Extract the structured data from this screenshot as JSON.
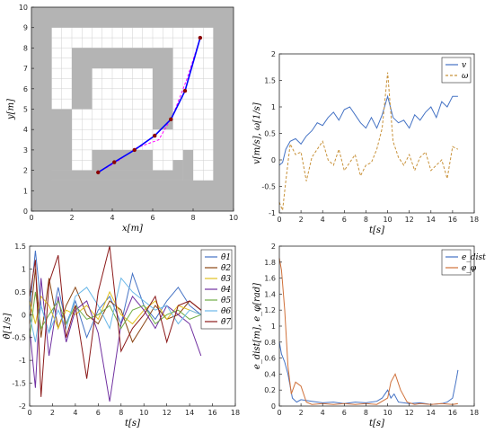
{
  "chart_data": [
    {
      "type": "map",
      "xlabel": "x[m]",
      "ylabel": "y[m]",
      "xlim": [
        0,
        10
      ],
      "ylim": [
        0,
        10
      ],
      "xticks": [
        "0",
        "2",
        "4",
        "6",
        "8",
        "10"
      ],
      "yticks": [
        "0",
        "1",
        "2",
        "3",
        "4",
        "5",
        "6",
        "7",
        "8",
        "9",
        "10"
      ],
      "grid": true,
      "colors": {
        "obstacle": "#b4b4b4",
        "free": "#ffffff",
        "grid": "#cfcfcf",
        "path": "#0000ff",
        "ref": "#ff00ff",
        "marker": "#8b0000"
      },
      "obstacles": [
        {
          "x": [
            0,
            10
          ],
          "y": [
            0,
            1.5
          ]
        },
        {
          "x": [
            0,
            1
          ],
          "y": [
            0,
            10
          ]
        },
        {
          "x": [
            9,
            10
          ],
          "y": [
            0,
            10
          ]
        },
        {
          "x": [
            0,
            10
          ],
          "y": [
            9,
            10
          ]
        },
        {
          "x": [
            1,
            2
          ],
          "y": [
            2,
            5
          ]
        },
        {
          "x": [
            1,
            7
          ],
          "y": [
            1.5,
            2
          ]
        },
        {
          "x": [
            2,
            7
          ],
          "y": [
            7,
            8
          ]
        },
        {
          "x": [
            2,
            3
          ],
          "y": [
            5,
            8
          ]
        },
        {
          "x": [
            6,
            7
          ],
          "y": [
            4,
            8
          ]
        },
        {
          "x": [
            3,
            6
          ],
          "y": [
            2,
            3
          ]
        },
        {
          "x": [
            7,
            7.5
          ],
          "y": [
            1.5,
            2.5
          ]
        },
        {
          "x": [
            7.5,
            8
          ],
          "y": [
            1.5,
            3
          ]
        }
      ],
      "robot_path": {
        "x": [
          3.3,
          4.1,
          5.1,
          6.1,
          6.9,
          7.6,
          8.35
        ],
        "y": [
          1.9,
          2.4,
          3.0,
          3.7,
          4.5,
          5.9,
          8.5
        ]
      },
      "reference_path": {
        "x": [
          3.3,
          4.2,
          5.2,
          6.3,
          7.0,
          7.7,
          8.35
        ],
        "y": [
          1.9,
          2.4,
          3.1,
          3.5,
          4.7,
          6.5,
          8.5
        ]
      }
    },
    {
      "type": "line",
      "xlabel": "t[s]",
      "ylabel": "v[m/s], ω[1/s]",
      "xlim": [
        0,
        18
      ],
      "ylim": [
        -1,
        2
      ],
      "xticks": [
        "0",
        "2",
        "4",
        "6",
        "8",
        "10",
        "12",
        "14",
        "16",
        "18"
      ],
      "yticks": [
        "-1",
        "-0.5",
        "0",
        "0.5",
        "1",
        "1.5",
        "2"
      ],
      "legend_position": "top-right",
      "series": [
        {
          "name": "v",
          "color": "#4472c4",
          "dash": "solid",
          "x": [
            0,
            0.3,
            0.6,
            1,
            1.5,
            2,
            2.5,
            3,
            3.5,
            4,
            4.5,
            5,
            5.5,
            6,
            6.5,
            7,
            7.5,
            8,
            8.5,
            9,
            9.5,
            10,
            10.5,
            11,
            11.5,
            12,
            12.5,
            13,
            13.5,
            14,
            14.5,
            15,
            15.5,
            16,
            16.5
          ],
          "y": [
            -0.1,
            -0.05,
            0.2,
            0.35,
            0.4,
            0.3,
            0.45,
            0.55,
            0.7,
            0.65,
            0.8,
            0.9,
            0.75,
            0.95,
            1.0,
            0.85,
            0.7,
            0.6,
            0.8,
            0.6,
            0.85,
            1.2,
            0.8,
            0.7,
            0.75,
            0.6,
            0.85,
            0.75,
            0.9,
            1.0,
            0.8,
            1.1,
            1.0,
            1.2,
            1.2
          ]
        },
        {
          "name": "ω",
          "color": "#c8923a",
          "dash": "dashed",
          "x": [
            0,
            0.3,
            0.6,
            1,
            1.5,
            2,
            2.5,
            3,
            3.5,
            4,
            4.5,
            5,
            5.5,
            6,
            6.5,
            7,
            7.5,
            8,
            8.5,
            9,
            9.5,
            10,
            10.5,
            11,
            11.5,
            12,
            12.5,
            13,
            13.5,
            14,
            14.5,
            15,
            15.5,
            16,
            16.5
          ],
          "y": [
            -0.8,
            -0.95,
            -0.4,
            0.3,
            0.1,
            0.15,
            -0.4,
            0.05,
            0.2,
            0.35,
            0.0,
            -0.1,
            0.2,
            -0.2,
            -0.05,
            0.1,
            -0.3,
            -0.1,
            -0.05,
            0.2,
            0.6,
            1.65,
            0.35,
            0.05,
            -0.1,
            0.1,
            -0.2,
            0.05,
            0.15,
            -0.2,
            -0.1,
            0.0,
            -0.35,
            0.25,
            0.2
          ]
        }
      ]
    },
    {
      "type": "line",
      "xlabel": "t[s]",
      "ylabel": "θ̇[1/s]",
      "xlim": [
        0,
        18
      ],
      "ylim": [
        -2,
        1.5
      ],
      "xticks": [
        "0",
        "2",
        "4",
        "6",
        "8",
        "10",
        "12",
        "14",
        "16",
        "18"
      ],
      "yticks": [
        "-2",
        "-1.5",
        "-1",
        "-0.5",
        "0",
        "0.5",
        "1",
        "1.5"
      ],
      "legend_position": "top-right",
      "series": [
        {
          "name": "θ̇1",
          "color": "#4472c4",
          "y": [
            0.1,
            1.4,
            0.2,
            -0.4,
            0.6,
            -0.2,
            0.3,
            -0.5,
            0.1,
            0.4,
            -0.2,
            0.9,
            0.2,
            -0.1,
            0.3,
            0.6,
            0.2,
            0.0
          ]
        },
        {
          "name": "θ̇2",
          "color": "#8b4513",
          "y": [
            -0.2,
            1.0,
            -0.5,
            0.8,
            -0.3,
            0.2,
            0.6,
            0.0,
            -0.2,
            0.3,
            0.1,
            -0.6,
            -0.2,
            0.2,
            -0.1,
            0.0,
            0.3,
            0.1
          ]
        },
        {
          "name": "θ̇3",
          "color": "#e0c020",
          "y": [
            0.3,
            -0.2,
            0.4,
            0.2,
            -0.3,
            0.1,
            0.0,
            0.2,
            -0.1,
            0.5,
            0.0,
            -0.2,
            0.1,
            0.3,
            -0.1,
            0.2,
            0.1,
            0.0
          ]
        },
        {
          "name": "θ̇4",
          "color": "#7030a0",
          "y": [
            -0.3,
            -1.6,
            0.8,
            -0.9,
            0.4,
            -0.6,
            0.1,
            0.3,
            -0.4,
            -1.9,
            -0.2,
            0.4,
            0.1,
            -0.3,
            0.2,
            0.0,
            -0.2,
            -0.9
          ]
        },
        {
          "name": "θ̇5",
          "color": "#70ad47",
          "y": [
            -0.5,
            0.5,
            -0.3,
            0.0,
            0.3,
            -0.2,
            0.2,
            -0.1,
            0.0,
            0.2,
            -0.3,
            0.1,
            0.2,
            -0.2,
            0.0,
            0.1,
            -0.1,
            0.0
          ]
        },
        {
          "name": "θ̇6",
          "color": "#6bb8e8",
          "y": [
            0.0,
            -0.6,
            0.2,
            -0.4,
            0.1,
            -0.3,
            0.4,
            0.6,
            0.2,
            -0.3,
            0.8,
            0.5,
            0.3,
            0.1,
            0.2,
            -0.2,
            0.1,
            0.0
          ]
        },
        {
          "name": "θ̇7",
          "color": "#8b1a1a",
          "y": [
            0.4,
            1.2,
            -1.8,
            0.7,
            1.3,
            -0.5,
            0.2,
            -1.4,
            0.5,
            1.5,
            -0.8,
            -0.3,
            0.0,
            0.4,
            -0.6,
            0.2,
            0.3,
            0.1
          ]
        }
      ],
      "x": [
        0,
        0.5,
        1,
        1.7,
        2.5,
        3.2,
        4,
        5,
        6,
        7,
        8,
        9,
        10,
        11,
        12,
        13,
        14,
        15
      ]
    },
    {
      "type": "line",
      "xlabel": "t[s]",
      "ylabel": "e_dist[m], e_φ[rad]",
      "xlim": [
        0,
        18
      ],
      "ylim": [
        0,
        2
      ],
      "xticks": [
        "0",
        "2",
        "4",
        "6",
        "8",
        "10",
        "12",
        "14",
        "16",
        "18"
      ],
      "yticks": [
        "0",
        "0.2",
        "0.4",
        "0.6",
        "0.8",
        "1",
        "1.2",
        "1.4",
        "1.6",
        "1.8",
        "2"
      ],
      "legend_position": "top-right",
      "series": [
        {
          "name": "e_dist",
          "color": "#4472c4",
          "x": [
            0,
            0.2,
            0.5,
            0.8,
            1.2,
            1.6,
            2,
            3,
            4,
            5,
            6,
            7,
            8,
            9,
            9.5,
            10,
            10.3,
            10.6,
            11,
            12,
            13,
            14,
            15,
            15.5,
            16,
            16.3,
            16.5
          ],
          "y": [
            0.8,
            0.65,
            0.55,
            0.4,
            0.1,
            0.05,
            0.08,
            0.06,
            0.04,
            0.05,
            0.03,
            0.05,
            0.04,
            0.06,
            0.1,
            0.2,
            0.1,
            0.15,
            0.05,
            0.03,
            0.04,
            0.02,
            0.03,
            0.05,
            0.1,
            0.3,
            0.45
          ]
        },
        {
          "name": "e_φ",
          "color": "#d0713a",
          "x": [
            0,
            0.2,
            0.5,
            0.8,
            1.1,
            1.5,
            2,
            2.5,
            3,
            4,
            5,
            6,
            7,
            8,
            9,
            10,
            10.3,
            10.7,
            11.2,
            11.8,
            12.5,
            13,
            14,
            15,
            16,
            16.5
          ],
          "y": [
            1.85,
            1.7,
            1.2,
            0.5,
            0.15,
            0.3,
            0.25,
            0.05,
            0.02,
            0.03,
            0.02,
            0.03,
            0.02,
            0.03,
            0.02,
            0.1,
            0.3,
            0.4,
            0.2,
            0.05,
            0.02,
            0.03,
            0.02,
            0.03,
            0.02,
            0.03
          ]
        }
      ]
    }
  ]
}
